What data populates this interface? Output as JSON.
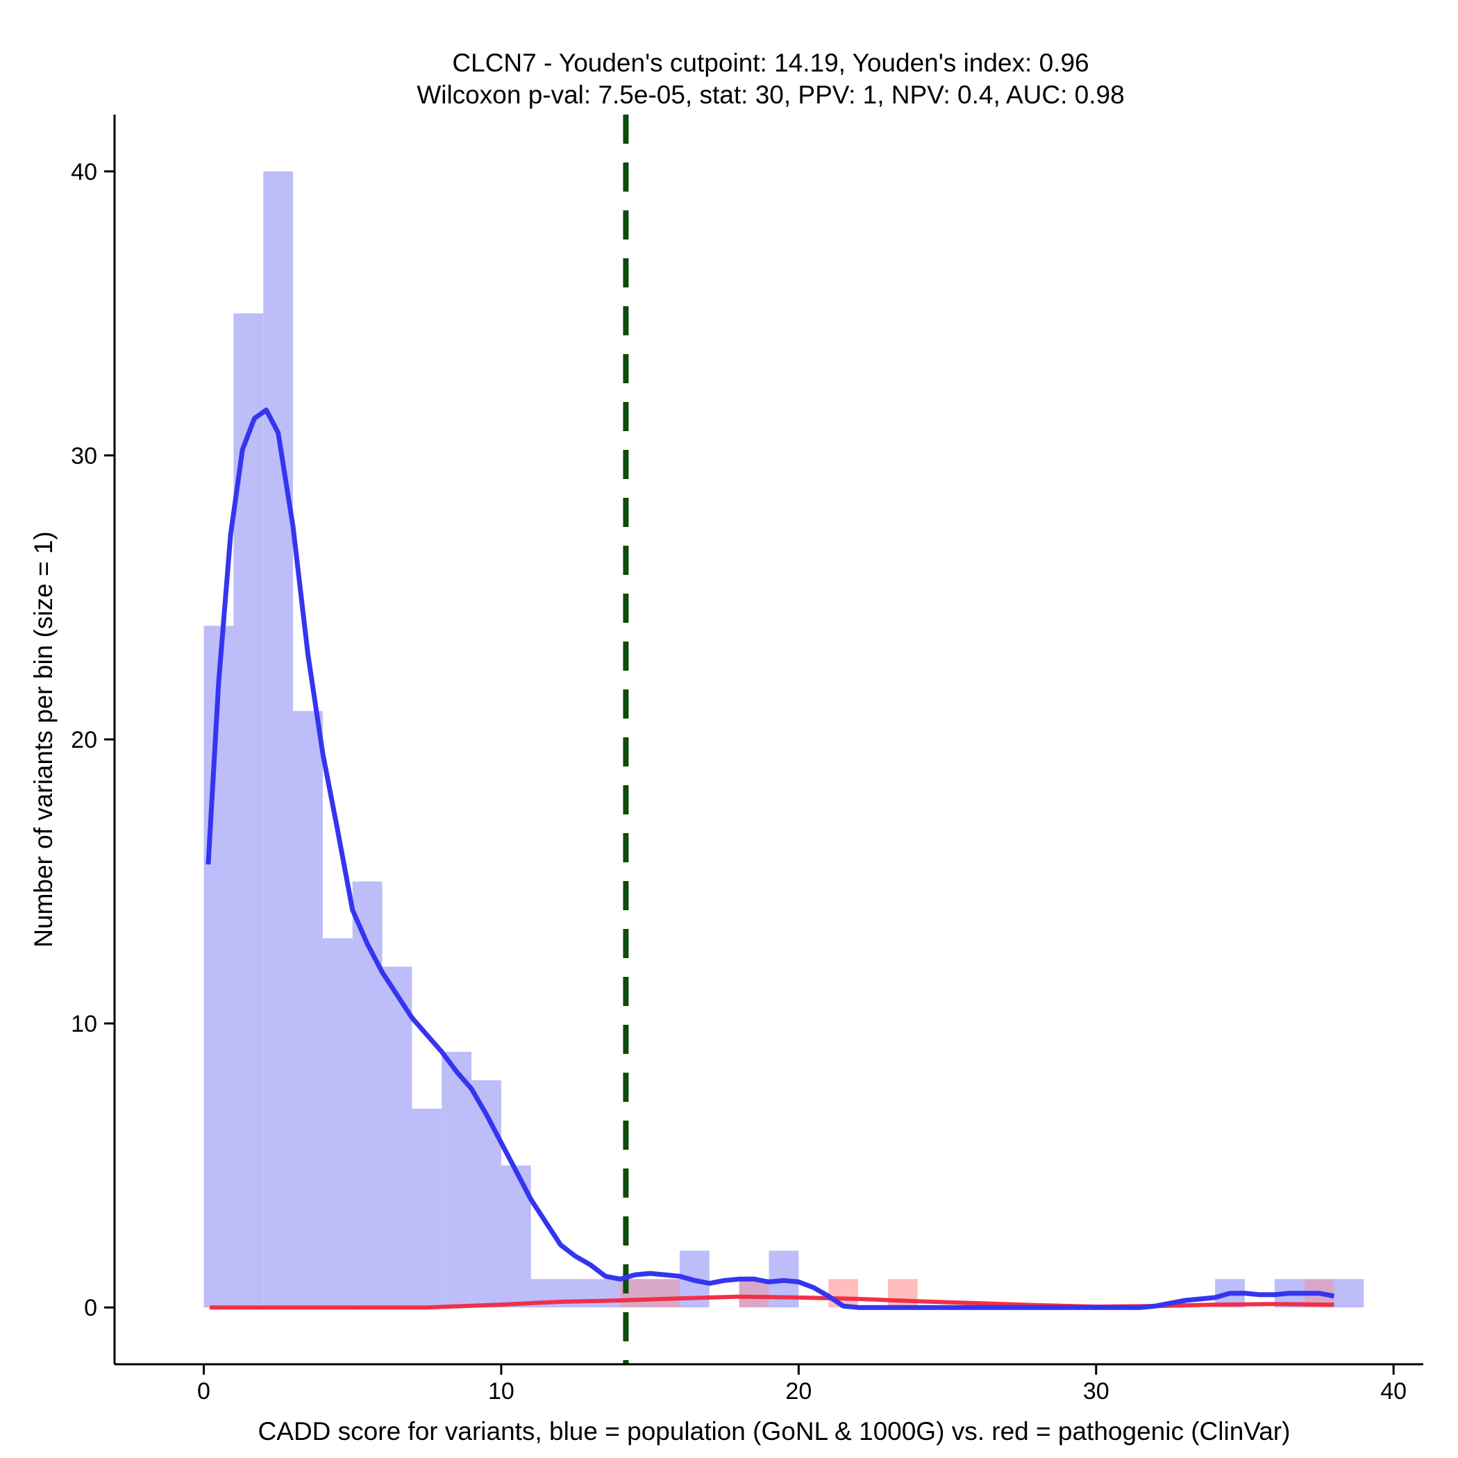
{
  "chart_data": {
    "type": "histogram",
    "title_line1": "CLCN7 - Youden's cutpoint: 14.19, Youden's index: 0.96",
    "title_line2": "Wilcoxon p-val: 7.5e-05, stat: 30, PPV: 1, NPV: 0.4, AUC: 0.98",
    "xlabel": "CADD score for variants, blue = population (GoNL & 1000G) vs. red = pathogenic (ClinVar)",
    "ylabel": "Number of variants per bin (size = 1)",
    "xlim": [
      -3,
      41
    ],
    "ylim": [
      -2,
      42
    ],
    "x_ticks": [
      0,
      10,
      20,
      30,
      40
    ],
    "y_ticks": [
      0,
      10,
      20,
      30,
      40
    ],
    "x_tick_labels": [
      "0",
      "10",
      "20",
      "30",
      "40"
    ],
    "y_tick_labels": [
      "0",
      "10",
      "20",
      "30",
      "40"
    ],
    "cutpoint": 14.19,
    "colors": {
      "population_bar": "#bdbdfa",
      "pathogenic_bar": "#ffbdbd",
      "overlap_bar": "#d9a7c7",
      "population_line": "#3535f0",
      "pathogenic_line": "#f03048",
      "cutpoint_line": "#0b4d0b"
    },
    "series": [
      {
        "name": "population",
        "bins": [
          {
            "x0": 0,
            "x1": 1,
            "count": 24
          },
          {
            "x0": 1,
            "x1": 2,
            "count": 35
          },
          {
            "x0": 2,
            "x1": 3,
            "count": 40
          },
          {
            "x0": 3,
            "x1": 4,
            "count": 21
          },
          {
            "x0": 4,
            "x1": 5,
            "count": 13
          },
          {
            "x0": 5,
            "x1": 6,
            "count": 15
          },
          {
            "x0": 6,
            "x1": 7,
            "count": 12
          },
          {
            "x0": 7,
            "x1": 8,
            "count": 7
          },
          {
            "x0": 8,
            "x1": 9,
            "count": 9
          },
          {
            "x0": 9,
            "x1": 10,
            "count": 8
          },
          {
            "x0": 10,
            "x1": 11,
            "count": 5
          },
          {
            "x0": 11,
            "x1": 12,
            "count": 1
          },
          {
            "x0": 12,
            "x1": 13,
            "count": 1
          },
          {
            "x0": 13,
            "x1": 14,
            "count": 1
          },
          {
            "x0": 14,
            "x1": 15,
            "count": 1
          },
          {
            "x0": 15,
            "x1": 16,
            "count": 1
          },
          {
            "x0": 16,
            "x1": 17,
            "count": 2
          },
          {
            "x0": 18,
            "x1": 19,
            "count": 1
          },
          {
            "x0": 19,
            "x1": 20,
            "count": 2
          },
          {
            "x0": 34,
            "x1": 35,
            "count": 1
          },
          {
            "x0": 36,
            "x1": 37,
            "count": 1
          },
          {
            "x0": 37,
            "x1": 38,
            "count": 1
          },
          {
            "x0": 38,
            "x1": 39,
            "count": 1
          }
        ],
        "density": [
          [
            0.15,
            15.6
          ],
          [
            0.5,
            22.0
          ],
          [
            0.9,
            27.2
          ],
          [
            1.3,
            30.2
          ],
          [
            1.7,
            31.3
          ],
          [
            2.1,
            31.6
          ],
          [
            2.5,
            30.8
          ],
          [
            3.0,
            27.5
          ],
          [
            3.5,
            23.0
          ],
          [
            4.0,
            19.5
          ],
          [
            4.5,
            16.8
          ],
          [
            5.0,
            14.0
          ],
          [
            5.5,
            12.8
          ],
          [
            6.0,
            11.8
          ],
          [
            6.5,
            11.0
          ],
          [
            7.0,
            10.2
          ],
          [
            7.5,
            9.6
          ],
          [
            8.0,
            9.0
          ],
          [
            8.5,
            8.3
          ],
          [
            9.0,
            7.7
          ],
          [
            9.5,
            6.8
          ],
          [
            10.0,
            5.8
          ],
          [
            10.5,
            4.8
          ],
          [
            11.0,
            3.8
          ],
          [
            11.5,
            3.0
          ],
          [
            12.0,
            2.2
          ],
          [
            12.5,
            1.8
          ],
          [
            13.0,
            1.5
          ],
          [
            13.5,
            1.1
          ],
          [
            14.0,
            1.0
          ],
          [
            14.5,
            1.15
          ],
          [
            15.0,
            1.2
          ],
          [
            15.5,
            1.15
          ],
          [
            16.0,
            1.1
          ],
          [
            16.5,
            0.95
          ],
          [
            17.0,
            0.85
          ],
          [
            17.5,
            0.95
          ],
          [
            18.0,
            1.0
          ],
          [
            18.5,
            1.0
          ],
          [
            19.0,
            0.9
          ],
          [
            19.5,
            0.95
          ],
          [
            20.0,
            0.9
          ],
          [
            20.5,
            0.7
          ],
          [
            21.0,
            0.4
          ],
          [
            21.5,
            0.05
          ],
          [
            22.0,
            0.0
          ],
          [
            25.0,
            0.0
          ],
          [
            28.0,
            0.0
          ],
          [
            31.5,
            0.0
          ],
          [
            32.0,
            0.05
          ],
          [
            33.0,
            0.25
          ],
          [
            34.0,
            0.35
          ],
          [
            34.5,
            0.5
          ],
          [
            35.0,
            0.5
          ],
          [
            35.5,
            0.45
          ],
          [
            36.0,
            0.45
          ],
          [
            36.5,
            0.5
          ],
          [
            37.0,
            0.5
          ],
          [
            37.5,
            0.5
          ],
          [
            38.0,
            0.4
          ]
        ]
      },
      {
        "name": "pathogenic",
        "bins": [
          {
            "x0": 14,
            "x1": 15,
            "count": 1
          },
          {
            "x0": 15,
            "x1": 16,
            "count": 1
          },
          {
            "x0": 18,
            "x1": 19,
            "count": 1
          },
          {
            "x0": 21,
            "x1": 22,
            "count": 1
          },
          {
            "x0": 23,
            "x1": 24,
            "count": 1
          },
          {
            "x0": 37,
            "x1": 38,
            "count": 1
          }
        ],
        "density": [
          [
            0.2,
            0.0
          ],
          [
            7.5,
            0.0
          ],
          [
            10.0,
            0.1
          ],
          [
            12.0,
            0.2
          ],
          [
            14.0,
            0.25
          ],
          [
            16.0,
            0.32
          ],
          [
            18.0,
            0.38
          ],
          [
            20.0,
            0.35
          ],
          [
            22.0,
            0.3
          ],
          [
            24.0,
            0.22
          ],
          [
            26.0,
            0.15
          ],
          [
            28.0,
            0.08
          ],
          [
            30.0,
            0.03
          ],
          [
            32.0,
            0.05
          ],
          [
            34.0,
            0.1
          ],
          [
            36.0,
            0.12
          ],
          [
            38.0,
            0.1
          ]
        ]
      }
    ]
  }
}
